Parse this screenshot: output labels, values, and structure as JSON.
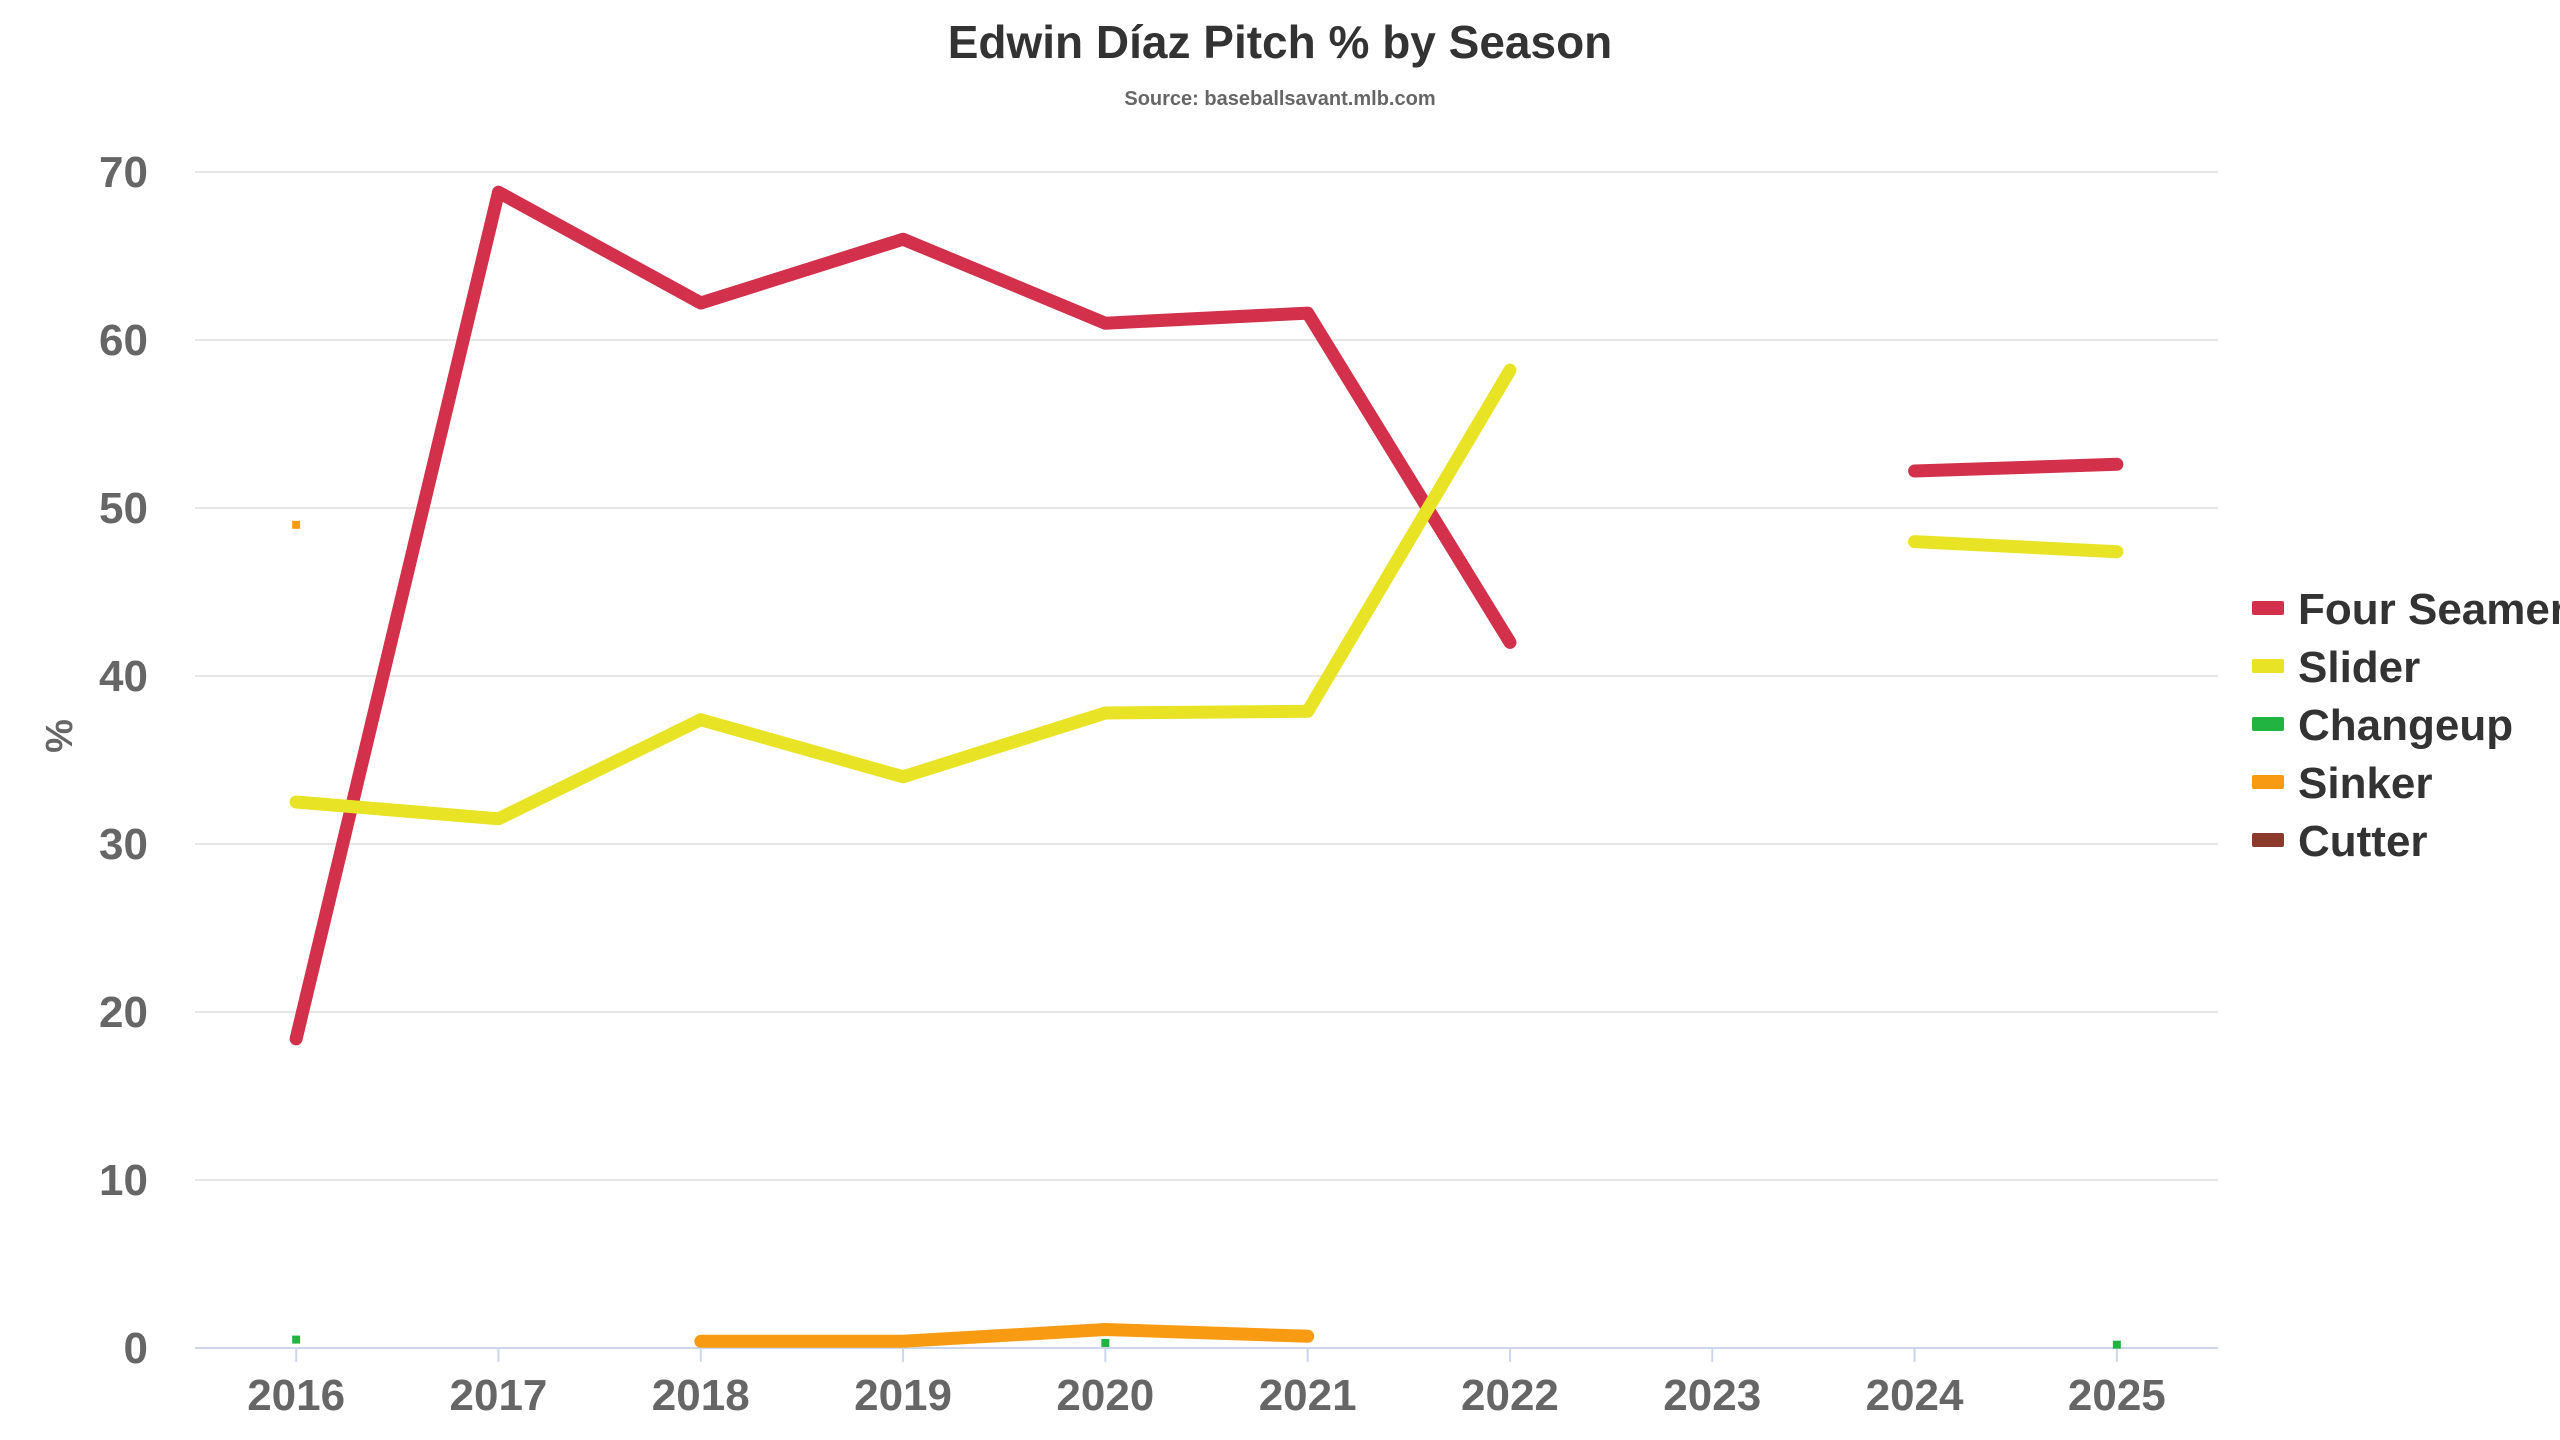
{
  "chart_data": {
    "type": "line",
    "title": "Edwin Díaz Pitch % by Season",
    "subtitle": "Source: baseballsavant.mlb.com",
    "xlabel": "",
    "ylabel": "%",
    "categories": [
      "2016",
      "2017",
      "2018",
      "2019",
      "2020",
      "2021",
      "2022",
      "2023",
      "2024",
      "2025"
    ],
    "ylim": [
      0,
      70
    ],
    "yticks": [
      0,
      10,
      20,
      30,
      40,
      50,
      60,
      70
    ],
    "grid": true,
    "legend_position": "right",
    "series": [
      {
        "name": "Four Seamer",
        "color": "#d2304b",
        "values": [
          18.4,
          68.8,
          62.2,
          66.0,
          61.0,
          61.6,
          42.0,
          null,
          52.2,
          52.6
        ]
      },
      {
        "name": "Slider",
        "color": "#e9e325",
        "values": [
          32.5,
          31.5,
          37.4,
          34.0,
          37.8,
          37.9,
          58.2,
          null,
          48.0,
          47.4
        ]
      },
      {
        "name": "Changeup",
        "color": "#22b440",
        "values": [
          0.5,
          null,
          null,
          null,
          0.3,
          null,
          null,
          null,
          null,
          0.2
        ]
      },
      {
        "name": "Sinker",
        "color": "#f89b12",
        "values": [
          49.0,
          null,
          0.4,
          0.4,
          1.1,
          0.7,
          null,
          null,
          null,
          null
        ]
      },
      {
        "name": "Cutter",
        "color": "#8b3a2b",
        "values": [
          null,
          null,
          null,
          null,
          null,
          null,
          null,
          null,
          null,
          null
        ]
      }
    ]
  }
}
